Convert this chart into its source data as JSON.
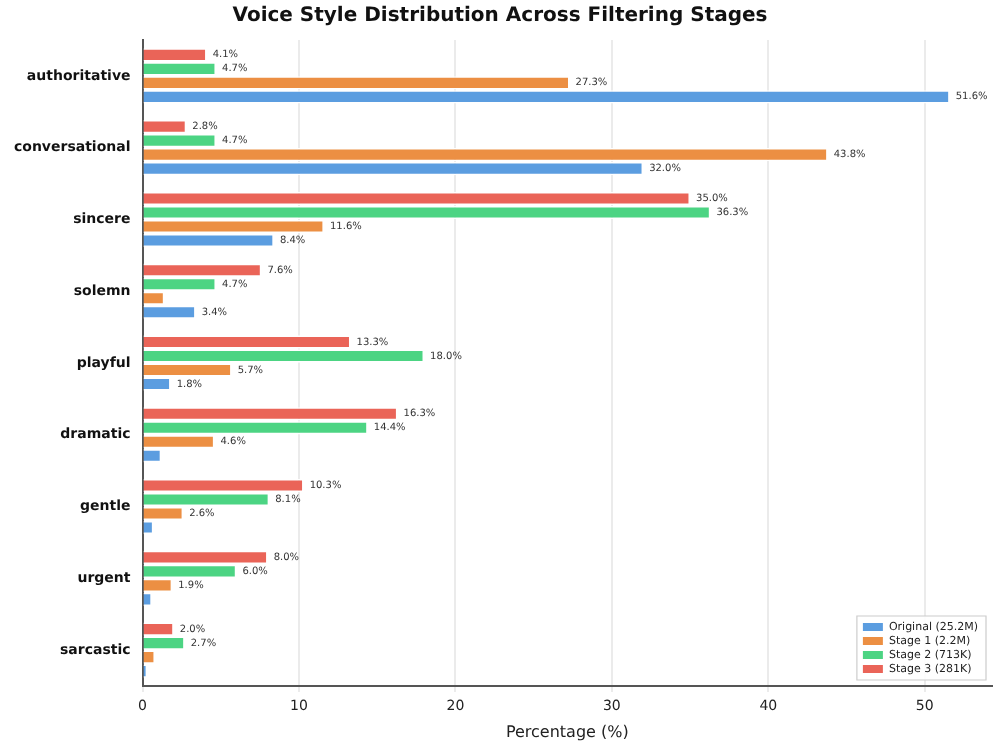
{
  "chart_data": {
    "type": "bar",
    "orientation": "horizontal",
    "title": "Voice Style Distribution Across Filtering Stages",
    "xlabel": "Percentage (%)",
    "categories": [
      "authoritative",
      "conversational",
      "sincere",
      "solemn",
      "playful",
      "dramatic",
      "gentle",
      "urgent",
      "sarcastic"
    ],
    "series": [
      {
        "name": "Original (25.2M)",
        "color": "#5b9de0",
        "values": [
          51.6,
          32.0,
          8.4,
          3.4,
          1.8,
          1.2,
          0.7,
          0.6,
          0.3
        ],
        "value_labels": [
          "51.6%",
          "32.0%",
          "8.4%",
          "3.4%",
          "1.8%",
          null,
          null,
          null,
          null
        ]
      },
      {
        "name": "Stage 1 (2.2M)",
        "color": "#ec8f43",
        "values": [
          27.3,
          43.8,
          11.6,
          1.4,
          5.7,
          4.6,
          2.6,
          1.9,
          0.8
        ],
        "value_labels": [
          "27.3%",
          "43.8%",
          "11.6%",
          null,
          "5.7%",
          "4.6%",
          "2.6%",
          "1.9%",
          null
        ]
      },
      {
        "name": "Stage 2 (713K)",
        "color": "#4cd483",
        "values": [
          4.7,
          4.7,
          36.3,
          4.7,
          18.0,
          14.4,
          8.1,
          6.0,
          2.7
        ],
        "value_labels": [
          "4.7%",
          "4.7%",
          "36.3%",
          "4.7%",
          "18.0%",
          "14.4%",
          "8.1%",
          "6.0%",
          "2.7%"
        ]
      },
      {
        "name": "Stage 3 (281K)",
        "color": "#ea6458",
        "values": [
          4.1,
          2.8,
          35.0,
          7.6,
          13.3,
          16.3,
          10.3,
          8.0,
          2.0
        ],
        "value_labels": [
          "4.1%",
          "2.8%",
          "35.0%",
          "7.6%",
          "13.3%",
          "16.3%",
          "10.3%",
          "8.0%",
          "2.0%"
        ]
      }
    ],
    "xlim": [
      0,
      54.3
    ],
    "xticks": [
      0,
      10,
      20,
      30,
      40,
      50
    ],
    "grid": "x",
    "legend": "bottom right"
  }
}
